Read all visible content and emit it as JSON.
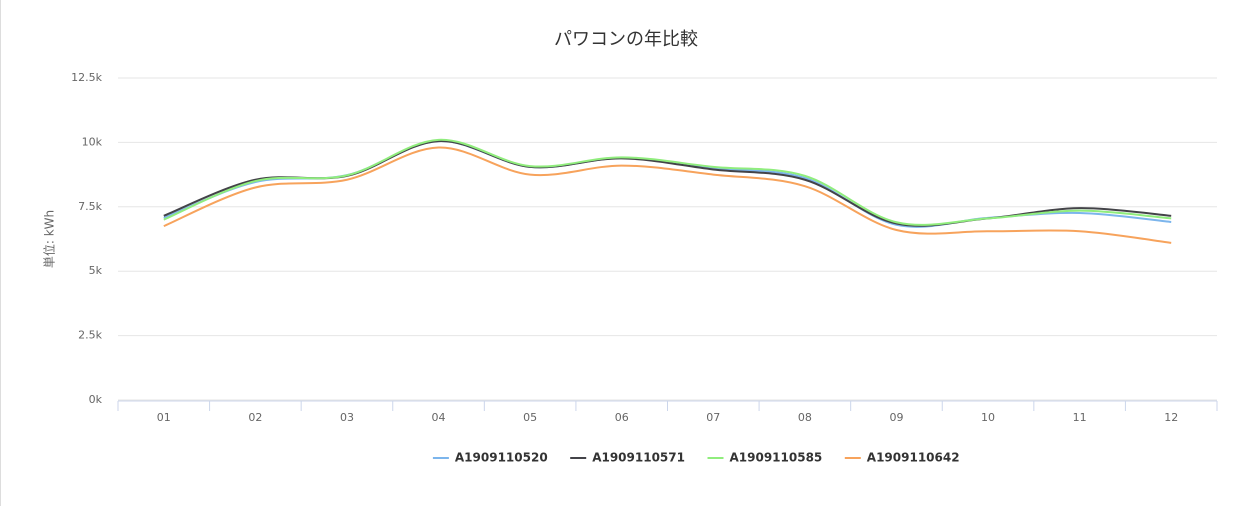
{
  "chart_data": {
    "type": "line",
    "title": "パワコンの年比較",
    "y_label": "単位: kWh",
    "categories": [
      "01",
      "02",
      "03",
      "04",
      "05",
      "06",
      "07",
      "08",
      "09",
      "10",
      "11",
      "12"
    ],
    "series": [
      {
        "name": "A1909110520",
        "color": "#7cb5ec",
        "values": [
          7070,
          8460,
          8730,
          10050,
          9050,
          9390,
          9000,
          8620,
          6800,
          7070,
          7260,
          6910
        ]
      },
      {
        "name": "A1909110571",
        "color": "#434348",
        "values": [
          7150,
          8550,
          8700,
          10050,
          9050,
          9380,
          8950,
          8550,
          6850,
          7050,
          7450,
          7150
        ]
      },
      {
        "name": "A1909110585",
        "color": "#90ed7d",
        "values": [
          7000,
          8500,
          8720,
          10100,
          9080,
          9420,
          9050,
          8700,
          6900,
          7050,
          7350,
          7050
        ]
      },
      {
        "name": "A1909110642",
        "color": "#f7a35c",
        "values": [
          6750,
          8250,
          8550,
          9800,
          8750,
          9100,
          8750,
          8300,
          6600,
          6550,
          6550,
          6100
        ]
      }
    ],
    "ylim": [
      0,
      12500
    ],
    "yticks": [
      {
        "value": 0,
        "label": "0k"
      },
      {
        "value": 2500,
        "label": "2.5k"
      },
      {
        "value": 5000,
        "label": "5k"
      },
      {
        "value": 7500,
        "label": "7.5k"
      },
      {
        "value": 10000,
        "label": "10k"
      },
      {
        "value": 12500,
        "label": "12.5k"
      }
    ],
    "grid": true,
    "legend": "bottom"
  }
}
